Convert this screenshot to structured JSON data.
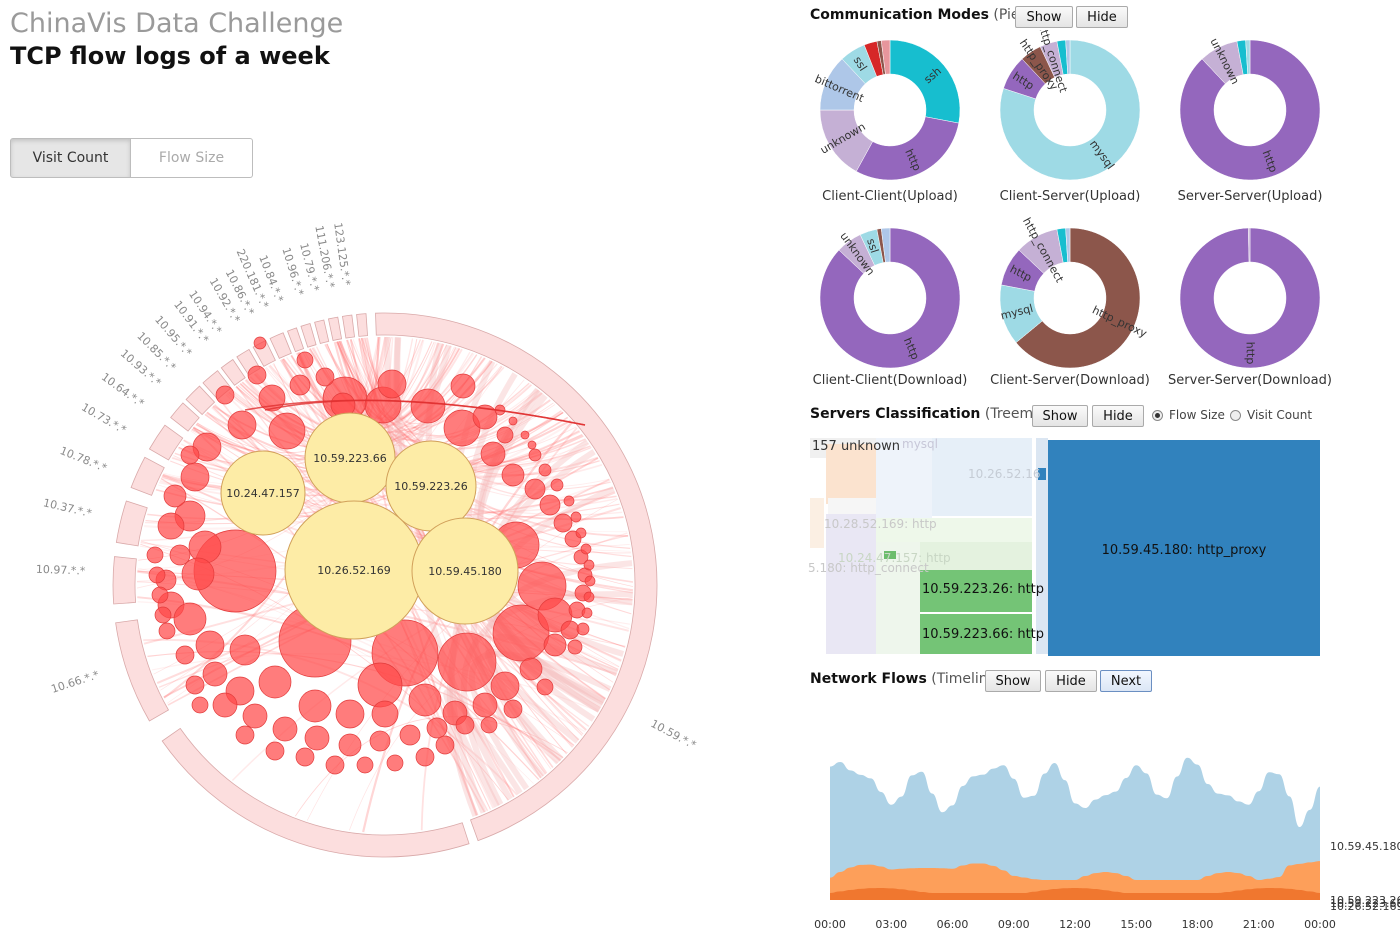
{
  "header": {
    "title": "ChinaVis Data Challenge",
    "subtitle": "TCP flow logs of a week"
  },
  "view_toggle": {
    "options": [
      "Visit Count",
      "Flow Size"
    ],
    "selected": "Visit Count"
  },
  "circle_view": {
    "arc_labels": [
      "10.66.*.*",
      "10.97.*.*",
      "10.37.*.*",
      "10.78.*.*",
      "10.73.*.*",
      "10.64.*.*",
      "10.93.*.*",
      "10.85.*.*",
      "10.95.*.*",
      "10.91.*.*",
      "10.94.*.*",
      "10.92.*.*",
      "10.86.*.*",
      "220.181.*.*",
      "10.84.*.*",
      "10.96.*.*",
      "10.79.*.*",
      "111.206.*.*",
      "123.125.*.*"
    ],
    "outer_label": "10.59.*.*",
    "big_nodes": [
      "10.24.47.157",
      "10.59.223.66",
      "10.59.223.26",
      "10.26.52.169",
      "10.59.45.180"
    ]
  },
  "comm_modes": {
    "title": "Communication Modes",
    "subtitle": "(Pies)",
    "show_label": "Show",
    "hide_label": "Hide",
    "pies": [
      {
        "label": "Client-Client(Upload)",
        "slices": [
          {
            "name": "ssh",
            "value": 28,
            "color": "#17becf"
          },
          {
            "name": "http",
            "value": 30,
            "color": "#9467bd"
          },
          {
            "name": "unknown",
            "value": 17,
            "color": "#c5b0d5"
          },
          {
            "name": "bittorrent",
            "value": 13,
            "color": "#aec7e8"
          },
          {
            "name": "ssl",
            "value": 6,
            "color": "#9edae5"
          },
          {
            "name": "",
            "value": 3,
            "color": "#d62728"
          },
          {
            "name": "",
            "value": 1,
            "color": "#8c564b"
          },
          {
            "name": "",
            "value": 2,
            "color": "#e7969c"
          }
        ]
      },
      {
        "label": "Client-Server(Upload)",
        "slices": [
          {
            "name": "mysql",
            "value": 80,
            "color": "#9edae5"
          },
          {
            "name": "http",
            "value": 8,
            "color": "#9467bd"
          },
          {
            "name": "http_proxy",
            "value": 5,
            "color": "#8c564b"
          },
          {
            "name": "http_connect",
            "value": 4,
            "color": "#c5b0d5"
          },
          {
            "name": "",
            "value": 2,
            "color": "#17becf"
          },
          {
            "name": "",
            "value": 1,
            "color": "#aec7e8"
          }
        ]
      },
      {
        "label": "Server-Server(Upload)",
        "slices": [
          {
            "name": "http",
            "value": 88,
            "color": "#9467bd"
          },
          {
            "name": "unknown",
            "value": 9,
            "color": "#c5b0d5"
          },
          {
            "name": "",
            "value": 2,
            "color": "#17becf"
          },
          {
            "name": "",
            "value": 1,
            "color": "#9edae5"
          }
        ]
      },
      {
        "label": "Client-Client(Download)",
        "slices": [
          {
            "name": "http",
            "value": 87,
            "color": "#9467bd"
          },
          {
            "name": "unknown",
            "value": 6,
            "color": "#c5b0d5"
          },
          {
            "name": "ssl",
            "value": 4,
            "color": "#9edae5"
          },
          {
            "name": "",
            "value": 1,
            "color": "#8c564b"
          },
          {
            "name": "",
            "value": 2,
            "color": "#aec7e8"
          }
        ]
      },
      {
        "label": "Client-Server(Download)",
        "slices": [
          {
            "name": "http_proxy",
            "value": 64,
            "color": "#8c564b"
          },
          {
            "name": "mysql",
            "value": 14,
            "color": "#9edae5"
          },
          {
            "name": "http",
            "value": 9,
            "color": "#9467bd"
          },
          {
            "name": "http_connect",
            "value": 10,
            "color": "#c5b0d5"
          },
          {
            "name": "",
            "value": 2,
            "color": "#17becf"
          },
          {
            "name": "",
            "value": 1,
            "color": "#aec7e8"
          }
        ]
      },
      {
        "label": "Server-Server(Download)",
        "slices": [
          {
            "name": "http",
            "value": 99.6,
            "color": "#9467bd"
          },
          {
            "name": "",
            "value": 0.4,
            "color": "#c5b0d5"
          }
        ]
      }
    ]
  },
  "servers": {
    "title": "Servers Classification",
    "subtitle": "(Treemap)",
    "show_label": "Show",
    "hide_label": "Hide",
    "radio_options": [
      "Flow Size",
      "Visit Count"
    ],
    "radio_selected": "Flow Size",
    "labels": [
      "10.59.45.180: http_proxy",
      "10.59.223.26: http",
      "10.59.223.66: http",
      "10.26.52.16",
      "157 unknown",
      "mysql",
      "10.28.52.169: http",
      "10.24.47.157: http",
      "5.180: http_connect"
    ]
  },
  "network_flows": {
    "title": "Network Flows",
    "subtitle": "(Timeline)",
    "show_label": "Show",
    "hide_label": "Hide",
    "next_label": "Next",
    "series_labels": [
      "10.59.45.180",
      "10.59.223.26",
      "10.59.223.66",
      "10.26.52.169"
    ],
    "x_ticks": [
      "00:00",
      "03:00",
      "06:00",
      "09:00",
      "12:00",
      "15:00",
      "18:00",
      "21:00",
      "00:00"
    ]
  },
  "colors": {
    "accent_red": "#ff4a4a",
    "node_yellow": "#fdeca6",
    "treemap_blue": "#3182bd",
    "timeline_blue": "#aed2e6",
    "timeline_orange": "#fd9f5a"
  }
}
